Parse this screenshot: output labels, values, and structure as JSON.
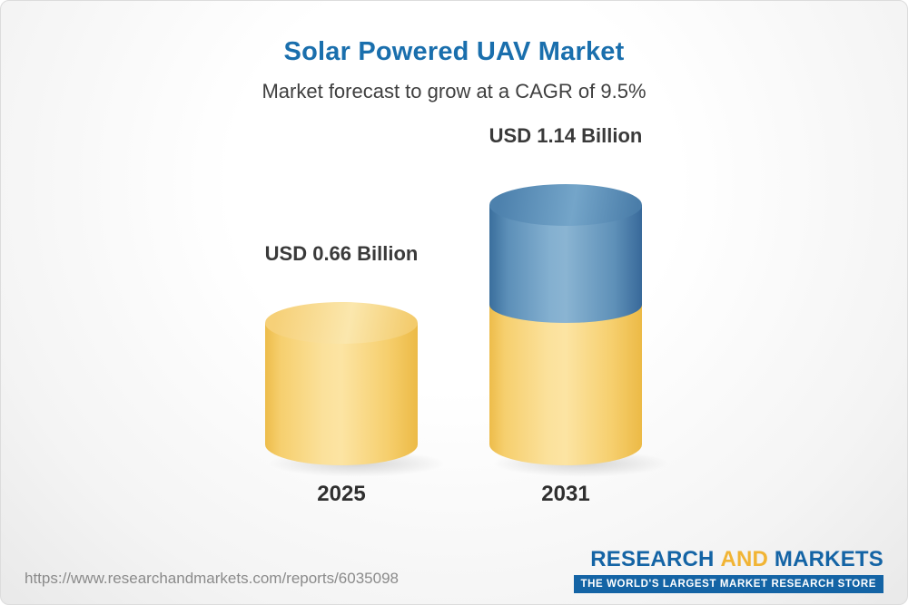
{
  "chart_data": {
    "type": "bar",
    "subtype": "3d-cylinder",
    "title": "Solar Powered UAV Market",
    "subtitle": "Market forecast to grow at a CAGR of 9.5%",
    "cagr_percent": 9.5,
    "unit": "USD Billion",
    "categories": [
      "2025",
      "2031"
    ],
    "values": [
      0.66,
      1.14
    ],
    "value_labels": [
      "USD 0.66 Billion",
      "USD 1.14 Billion"
    ],
    "legend": "none",
    "axes": "none",
    "colors": {
      "base_segment": "#F2C85C",
      "growth_segment": "#4478A8",
      "title": "#1A6FAD"
    }
  },
  "footer": {
    "source_url": "https://www.researchandmarkets.com/reports/6035098",
    "logo": {
      "word_research": "RESEARCH",
      "word_and": "AND",
      "word_markets": "MARKETS",
      "tagline": "THE WORLD'S LARGEST MARKET RESEARCH STORE"
    }
  }
}
